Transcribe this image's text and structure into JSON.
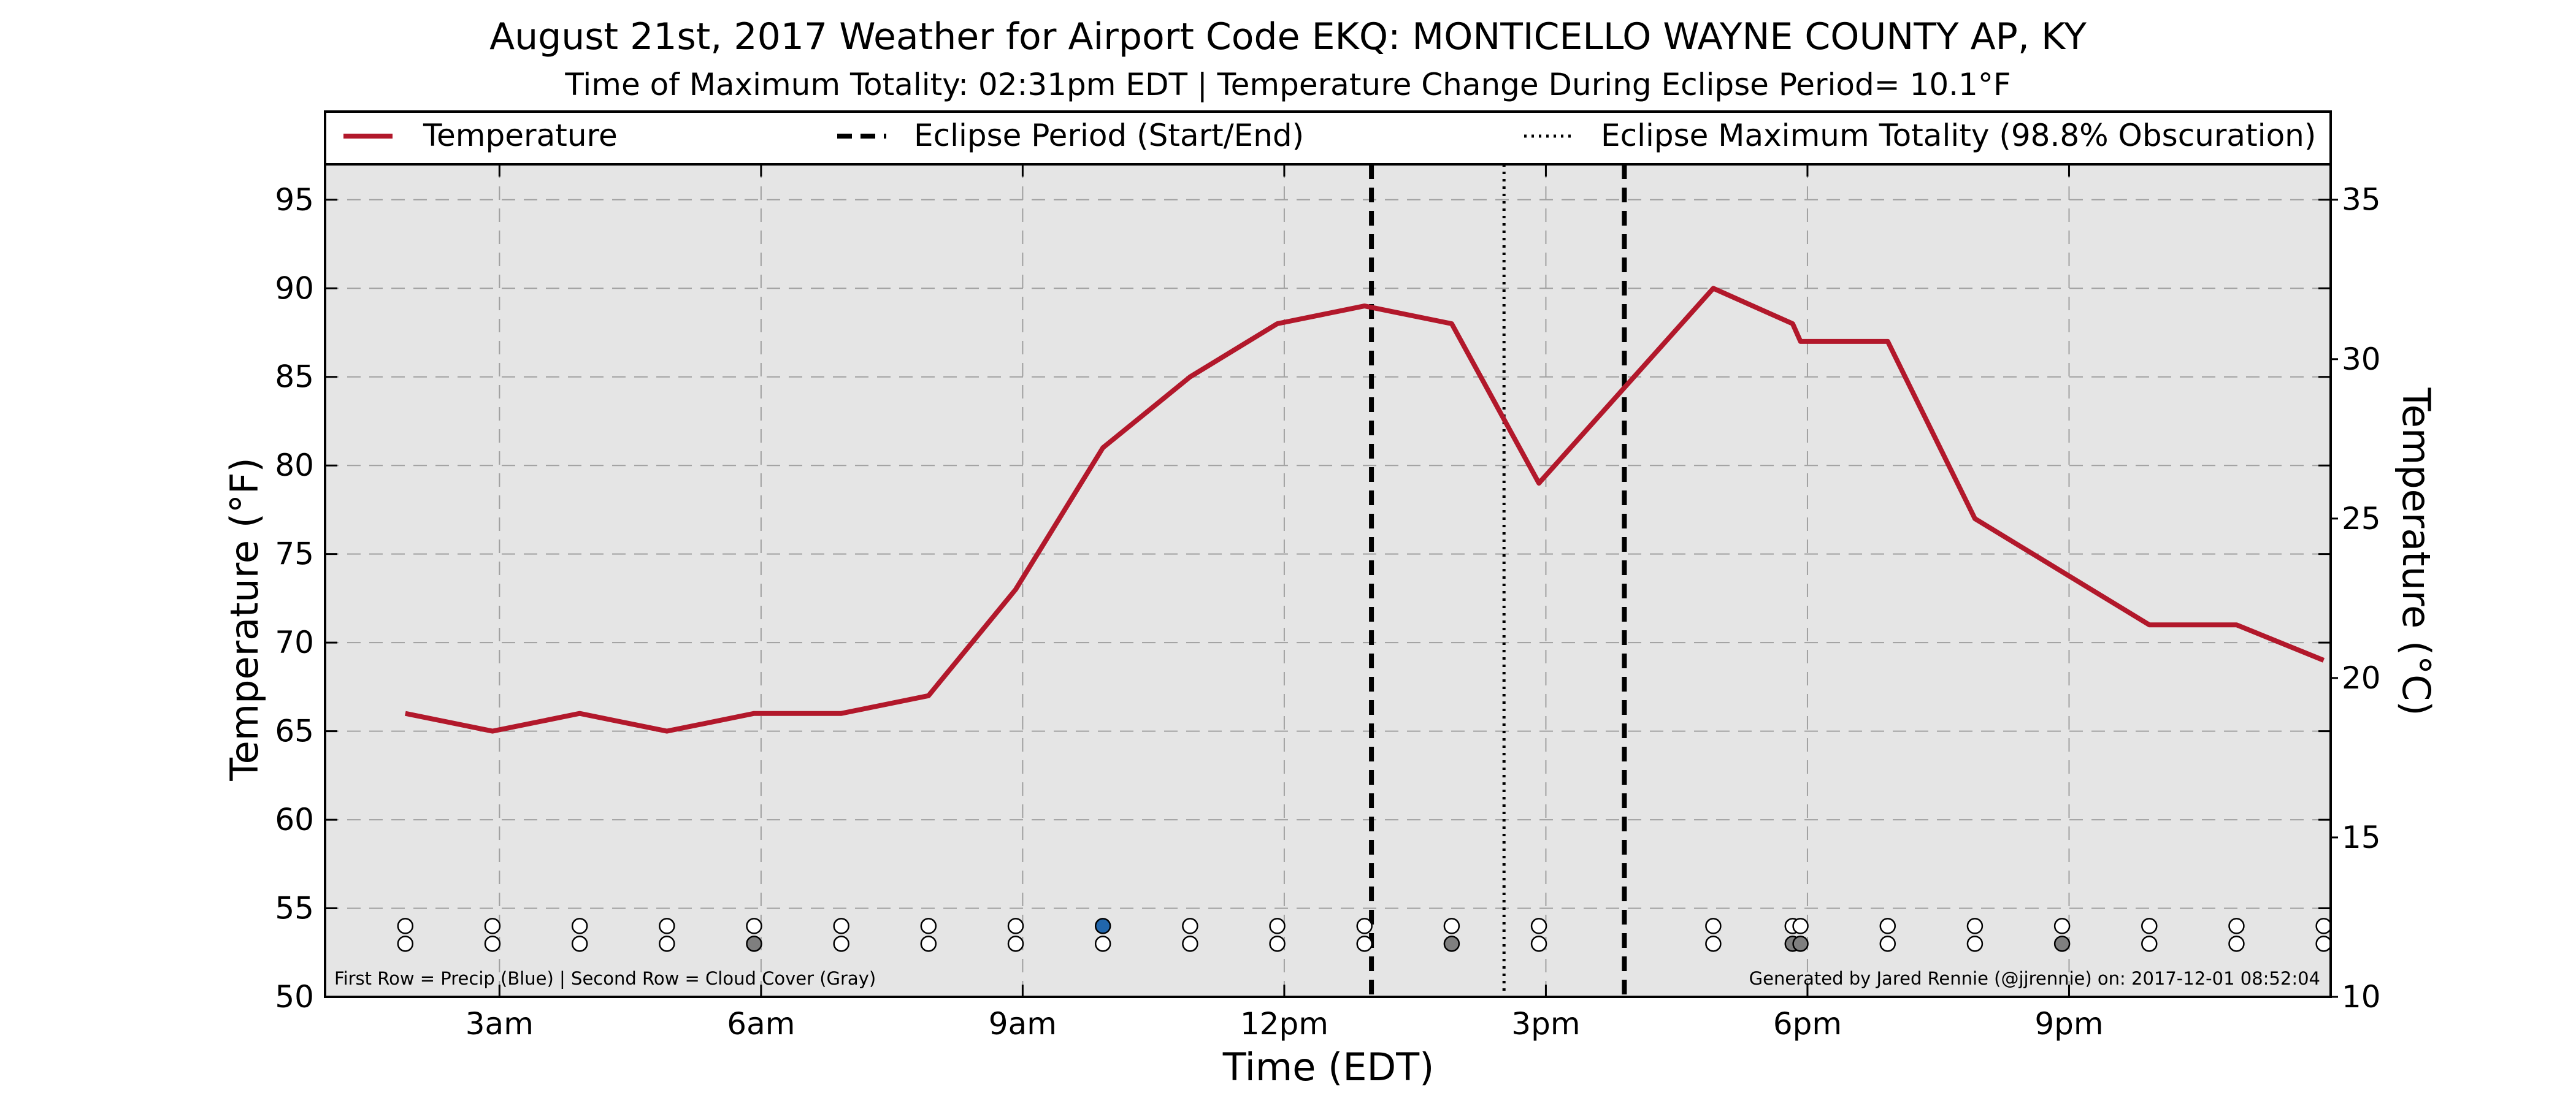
{
  "chart_data": {
    "type": "line",
    "title": "August 21st, 2017 Weather for Airport Code EKQ: MONTICELLO WAYNE COUNTY AP, KY",
    "subtitle": "Time of Maximum Totality: 02:31pm EDT | Temperature Change During Eclipse Period= 10.1°F",
    "xlabel": "Time (EDT)",
    "ylabel": "Temperature (°F)",
    "y2label": "Temperature (°C)",
    "xlim": [
      1.0,
      24.0
    ],
    "ylim": [
      50,
      97
    ],
    "y2lim": [
      10,
      36.11
    ],
    "x_ticks": [
      {
        "x": 3,
        "label": "3am"
      },
      {
        "x": 6,
        "label": "6am"
      },
      {
        "x": 9,
        "label": "9am"
      },
      {
        "x": 12,
        "label": "12pm"
      },
      {
        "x": 15,
        "label": "3pm"
      },
      {
        "x": 18,
        "label": "6pm"
      },
      {
        "x": 21,
        "label": "9pm"
      }
    ],
    "y_ticks": [
      50,
      55,
      60,
      65,
      70,
      75,
      80,
      85,
      90,
      95
    ],
    "y2_ticks": [
      10,
      15,
      20,
      25,
      30,
      35
    ],
    "grid": true,
    "legend_position": "top",
    "series": [
      {
        "name": "Temperature",
        "color": "#b2182b",
        "x": [
          1.92,
          2.92,
          3.92,
          4.92,
          5.92,
          6.92,
          7.92,
          8.92,
          9.92,
          10.92,
          11.92,
          12.92,
          13.92,
          14.92,
          16.92,
          17.83,
          17.92,
          18.92,
          19.92,
          20.92,
          21.92,
          22.92,
          23.92
        ],
        "y": [
          66,
          65,
          66,
          65,
          66,
          66,
          67,
          73,
          81,
          85,
          88,
          89,
          88,
          79,
          90,
          88,
          87,
          87,
          77,
          74,
          71,
          71,
          69
        ]
      }
    ],
    "eclipse_lines": {
      "start": 13.0,
      "end": 15.9,
      "max": 14.52,
      "start_end_label": "Eclipse Period (Start/End)",
      "max_label": "Eclipse Maximum Totality (98.8% Obscuration)"
    },
    "markers": {
      "row1_y": 54,
      "row2_y": 53,
      "x": [
        1.92,
        2.92,
        3.92,
        4.92,
        5.92,
        6.92,
        7.92,
        8.92,
        9.92,
        10.92,
        11.92,
        12.92,
        13.92,
        14.92,
        16.92,
        17.83,
        17.92,
        18.92,
        19.92,
        20.92,
        21.92,
        22.92,
        23.92
      ],
      "precip": [
        0,
        0,
        0,
        0,
        0,
        0,
        0,
        0,
        1,
        0,
        0,
        0,
        0,
        0,
        0,
        0,
        0,
        0,
        0,
        0,
        0,
        0,
        0
      ],
      "cloud": [
        0,
        0,
        0,
        0,
        1,
        0,
        0,
        0,
        0,
        0,
        0,
        0,
        1,
        0,
        0,
        1,
        1,
        0,
        0,
        1,
        0,
        0,
        0
      ],
      "precip_color": "#2166ac",
      "cloud_color": "#7f7f7f"
    },
    "footnote_left": "First Row = Precip (Blue) | Second Row = Cloud Cover (Gray)",
    "footnote_right": "Generated by Jared Rennie (@jjrennie) on: 2017-12-01 08:52:04"
  }
}
